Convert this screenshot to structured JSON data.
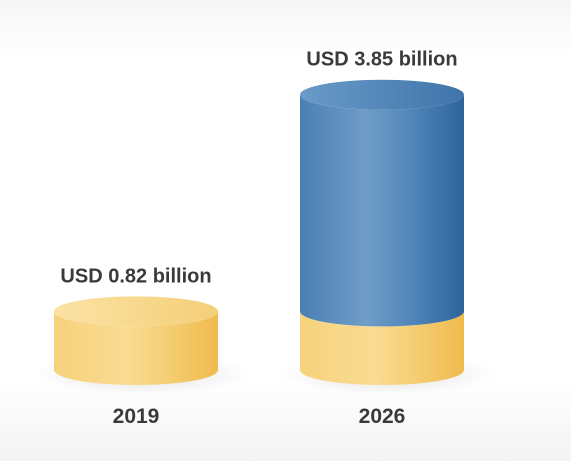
{
  "chart_data": {
    "type": "bar",
    "style": "3d-cylinder",
    "categories": [
      "2019",
      "2026"
    ],
    "values": [
      0.82,
      3.85
    ],
    "value_labels": [
      "USD 0.82 billion",
      "USD 3.85 billion"
    ],
    "title": "",
    "xlabel": "",
    "ylabel": "",
    "colors": {
      "base": "#f2c35e",
      "growth": "#3f77ad"
    }
  }
}
